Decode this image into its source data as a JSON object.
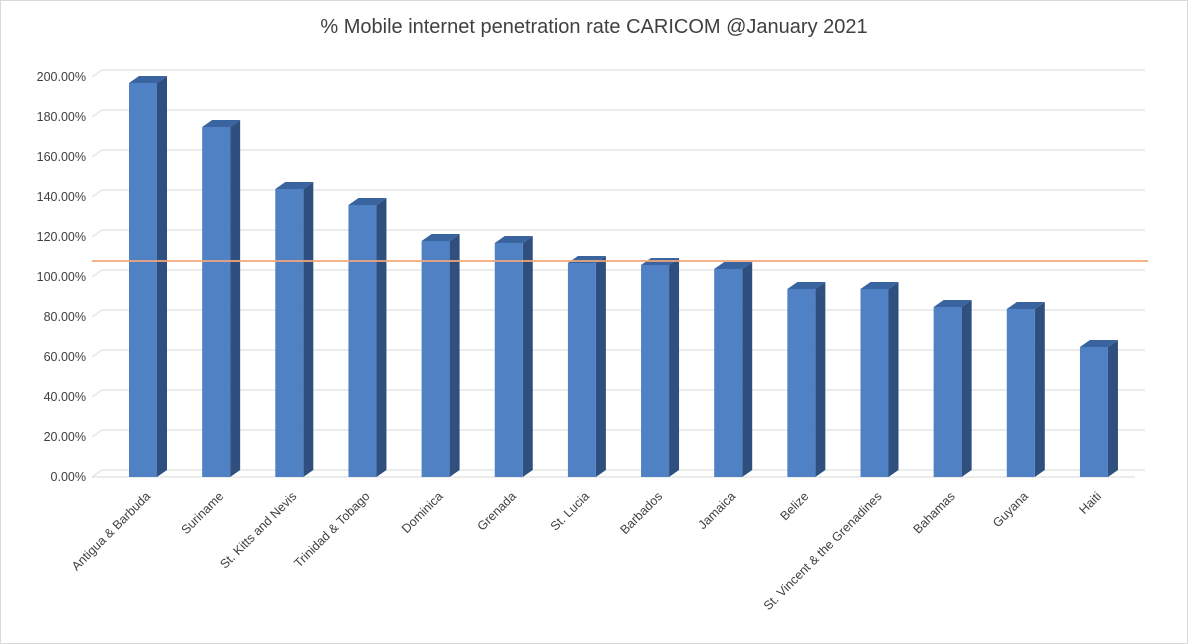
{
  "chart_data": {
    "type": "bar",
    "title": "% Mobile internet penetration rate CARICOM @January 2021",
    "xlabel": "",
    "ylabel": "",
    "ylim": [
      0,
      200
    ],
    "yticks": [
      "0.00%",
      "20.00%",
      "40.00%",
      "60.00%",
      "80.00%",
      "100.00%",
      "120.00%",
      "140.00%",
      "160.00%",
      "180.00%",
      "200.00%"
    ],
    "grid": true,
    "legend": "none",
    "categories": [
      "Antigua & Barbuda",
      "Suriname",
      "St. Kitts and Nevis",
      "Trinidad & Tobago",
      "Dominica",
      "Grenada",
      "St. Lucia",
      "Barbados",
      "Jamaica",
      "Belize",
      "St. Vincent & the Grenadines",
      "Bahamas",
      "Guyana",
      "Haiti"
    ],
    "values": [
      197,
      175,
      144,
      136,
      118,
      117,
      107,
      106,
      104,
      94,
      94,
      85,
      84,
      65
    ],
    "reference_line": {
      "value": 106
    },
    "colors": {
      "bar_front": "#4f81c4",
      "bar_side": "#2f4f7f",
      "bar_top": "#3a64a0",
      "reference_line": "#f0a77a",
      "grid": "#d9d9d9"
    }
  }
}
